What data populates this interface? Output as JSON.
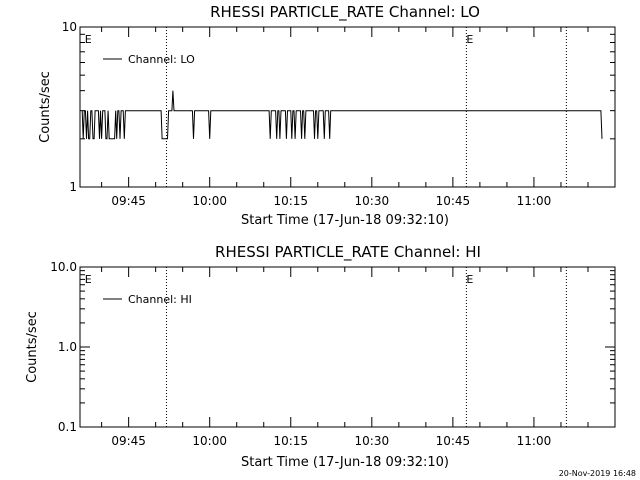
{
  "chart_data": [
    {
      "type": "line",
      "title": "RHESSI PARTICLE_RATE Channel: LO",
      "xlabel": "Start Time (17-Jun-18 09:32:10)",
      "ylabel": "Counts/sec",
      "y_scale": "log",
      "ylim": [
        1,
        10
      ],
      "yticks": [
        {
          "v": 1,
          "label": "1"
        },
        {
          "v": 10,
          "label": "10"
        }
      ],
      "xlim_min": [
        36,
        135
      ],
      "xticks": [
        {
          "t": 45,
          "label": "09:45"
        },
        {
          "t": 60,
          "label": "10:00"
        },
        {
          "t": 75,
          "label": "10:15"
        },
        {
          "t": 90,
          "label": "10:30"
        },
        {
          "t": 105,
          "label": "10:45"
        },
        {
          "t": 120,
          "label": "11:00"
        }
      ],
      "vlines": [
        52,
        107.5,
        126
      ],
      "event_markers": [
        {
          "t": 36.5,
          "label": "E"
        },
        {
          "t": 107.5,
          "label": "E"
        }
      ],
      "grid": false,
      "legend": "top-left",
      "series": [
        {
          "name": "Channel: LO",
          "t_start": 36.4,
          "t_step": 0.2,
          "values": [
            3,
            2,
            3,
            3,
            2,
            3,
            2,
            2,
            3,
            3,
            2,
            2,
            3,
            3,
            3,
            3,
            2,
            3,
            2,
            3,
            3,
            3,
            2,
            2,
            3,
            2,
            2,
            2,
            2,
            2,
            2,
            3,
            2,
            3,
            3,
            2,
            3,
            3,
            3,
            2,
            3,
            3,
            3,
            3,
            3,
            3,
            3,
            3,
            3,
            3,
            3,
            3,
            3,
            3,
            3,
            3,
            3,
            3,
            3,
            3,
            3,
            3,
            3,
            3,
            3,
            3,
            3,
            3,
            3,
            3,
            3,
            3,
            3,
            3,
            2,
            2,
            2,
            2,
            2,
            2,
            3,
            3,
            3,
            3,
            4,
            3,
            3,
            3,
            3,
            3,
            3,
            3,
            3,
            3,
            3,
            3,
            3,
            3,
            3,
            3,
            3,
            3,
            3,
            2,
            3,
            3,
            3,
            3,
            3,
            3,
            3,
            3,
            3,
            3,
            3,
            3,
            3,
            3,
            2,
            3,
            3,
            3,
            3,
            3,
            3,
            3,
            3,
            3,
            3,
            3,
            3,
            3,
            3,
            3,
            3,
            3,
            3,
            3,
            3,
            3,
            3,
            3,
            3,
            3,
            3,
            3,
            3,
            3,
            3,
            3,
            3,
            3,
            3,
            3,
            3,
            3,
            3,
            3,
            3,
            3,
            3,
            3,
            3,
            3,
            3,
            3,
            3,
            3,
            3,
            3,
            3,
            3,
            3,
            3,
            2,
            3,
            3,
            3,
            3,
            3,
            2,
            3,
            3,
            2,
            3,
            3,
            3,
            3,
            3,
            2,
            3,
            3,
            3,
            3,
            2,
            3,
            3,
            2,
            3,
            3,
            3,
            3,
            3,
            2,
            3,
            3,
            2,
            3,
            3,
            3,
            3,
            3,
            3,
            3,
            3,
            2,
            3,
            3,
            2,
            3,
            3,
            3,
            3,
            3,
            2,
            3,
            3,
            3,
            3,
            2,
            3,
            3,
            3,
            3,
            3,
            3,
            3,
            3,
            3,
            3,
            3,
            3,
            3,
            3,
            3,
            3,
            3,
            3,
            3,
            3,
            3,
            3,
            3,
            3,
            3,
            3,
            3,
            3,
            3,
            3,
            3,
            3,
            3,
            3,
            3,
            3,
            3,
            3,
            3,
            3,
            3,
            3,
            3,
            3,
            3,
            3,
            3,
            3,
            3,
            3,
            3,
            3,
            3,
            3,
            3,
            3,
            3,
            3,
            3,
            3,
            3,
            3,
            3,
            3,
            3,
            3,
            3,
            3,
            3,
            3,
            3,
            3,
            3,
            3,
            3,
            3,
            3,
            3,
            3,
            3,
            3,
            3,
            3,
            3,
            3,
            3,
            3,
            3,
            3,
            3,
            3,
            3,
            3,
            3,
            3,
            3,
            3,
            3,
            3,
            3,
            3,
            3,
            3,
            3,
            3,
            3,
            3,
            3,
            3,
            3,
            3,
            3,
            3,
            3,
            3,
            3,
            3,
            3,
            3,
            3,
            3,
            3,
            3,
            3,
            3,
            3,
            3,
            3,
            3,
            3,
            3,
            3,
            3,
            3,
            3,
            3,
            3,
            3,
            3,
            3,
            3,
            3,
            3,
            3,
            3,
            3,
            3,
            3,
            3,
            3,
            3,
            3,
            3,
            3,
            3,
            3,
            3,
            3,
            3,
            3,
            3,
            3,
            3,
            3,
            3,
            3,
            3,
            3,
            3,
            3,
            3,
            3,
            3,
            3,
            3,
            3,
            3,
            3,
            3,
            3,
            3,
            3,
            3,
            3,
            3,
            3,
            3,
            3,
            3,
            3,
            3,
            3,
            3,
            3,
            3,
            3,
            3,
            3,
            3,
            3,
            3,
            3,
            3,
            3,
            3,
            3,
            3,
            3,
            3,
            3,
            3,
            3,
            3,
            3,
            3,
            3,
            3,
            3,
            3,
            3,
            3,
            3,
            3,
            3,
            3,
            3,
            3,
            3,
            3,
            3,
            3,
            3,
            3,
            3,
            3,
            3,
            3,
            3,
            3,
            3,
            3,
            3,
            3,
            3,
            3,
            3,
            3,
            3,
            3,
            3,
            3,
            2
          ]
        }
      ]
    },
    {
      "type": "line",
      "title": "RHESSI PARTICLE_RATE Channel: HI",
      "xlabel": "Start Time (17-Jun-18 09:32:10)",
      "ylabel": "Counts/sec",
      "y_scale": "log",
      "ylim": [
        0.1,
        10
      ],
      "yticks": [
        {
          "v": 0.1,
          "label": "0.1"
        },
        {
          "v": 1,
          "label": "1.0"
        },
        {
          "v": 10,
          "label": "10.0"
        }
      ],
      "xlim_min": [
        36,
        135
      ],
      "xticks": [
        {
          "t": 45,
          "label": "09:45"
        },
        {
          "t": 60,
          "label": "10:00"
        },
        {
          "t": 75,
          "label": "10:15"
        },
        {
          "t": 90,
          "label": "10:30"
        },
        {
          "t": 105,
          "label": "10:45"
        },
        {
          "t": 120,
          "label": "11:00"
        }
      ],
      "vlines": [
        52,
        107.5,
        126
      ],
      "event_markers": [
        {
          "t": 36.5,
          "label": "E"
        },
        {
          "t": 107.5,
          "label": "E"
        }
      ],
      "grid": false,
      "legend": "top-left",
      "series": [
        {
          "name": "Channel: HI",
          "values": []
        }
      ]
    }
  ],
  "footer": {
    "timestamp": "20-Nov-2019 16:48"
  }
}
